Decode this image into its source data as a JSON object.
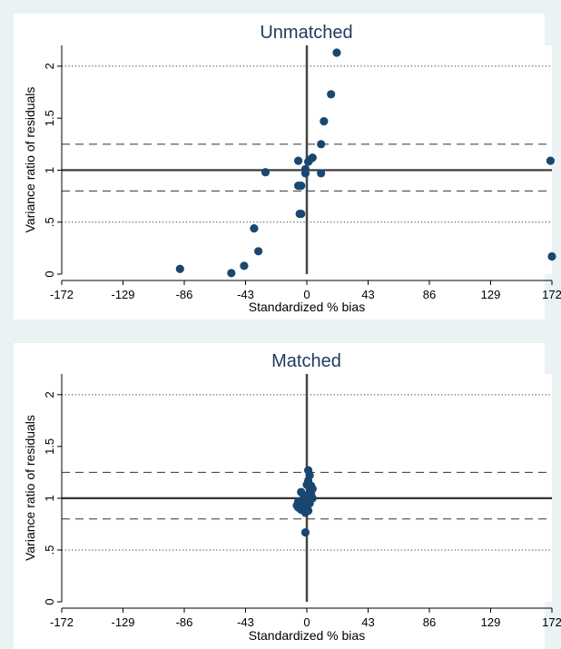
{
  "chart_data": [
    {
      "type": "scatter",
      "title": "Unmatched",
      "xlabel": "Standardized % bias",
      "ylabel": "Variance ratio of residuals",
      "xlim": [
        -172,
        172
      ],
      "ylim": [
        0,
        2.2
      ],
      "xticks": [
        -172,
        -129,
        -86,
        -43,
        0,
        43,
        86,
        129,
        172
      ],
      "xtick_labels": [
        "-172",
        "-129",
        "-86",
        "-43",
        "0",
        "43",
        "86",
        "129",
        "172"
      ],
      "yticks": [
        0,
        0.5,
        1,
        1.5,
        2
      ],
      "ytick_labels": [
        "0",
        ".5",
        "1",
        "1.5",
        "2"
      ],
      "ref_lines_y": [
        {
          "y": 2,
          "style": "dotted"
        },
        {
          "y": 1.25,
          "style": "dashed"
        },
        {
          "y": 1,
          "style": "solid"
        },
        {
          "y": 0.8,
          "style": "dashed"
        },
        {
          "y": 0.5,
          "style": "dotted"
        }
      ],
      "ref_line_x": 0,
      "marker_color": "#1a476f",
      "points": [
        {
          "x": 21,
          "y": 2.13
        },
        {
          "x": 17,
          "y": 1.73
        },
        {
          "x": 12,
          "y": 1.47
        },
        {
          "x": 10,
          "y": 1.25
        },
        {
          "x": 4,
          "y": 1.12
        },
        {
          "x": 2,
          "y": 1.1
        },
        {
          "x": 1,
          "y": 1.08
        },
        {
          "x": -6,
          "y": 1.09
        },
        {
          "x": -1,
          "y": 1.01
        },
        {
          "x": -1,
          "y": 0.97
        },
        {
          "x": 10,
          "y": 0.97
        },
        {
          "x": -29,
          "y": 0.98
        },
        {
          "x": -4,
          "y": 0.85
        },
        {
          "x": -6,
          "y": 0.85
        },
        {
          "x": -5,
          "y": 0.58
        },
        {
          "x": -4,
          "y": 0.58
        },
        {
          "x": -37,
          "y": 0.44
        },
        {
          "x": -34,
          "y": 0.22
        },
        {
          "x": -44,
          "y": 0.08
        },
        {
          "x": -53,
          "y": 0.01
        },
        {
          "x": -89,
          "y": 0.05
        },
        {
          "x": 171,
          "y": 1.09
        },
        {
          "x": 172,
          "y": 0.17
        }
      ]
    },
    {
      "type": "scatter",
      "title": "Matched",
      "xlabel": "Standardized % bias",
      "ylabel": "Variance ratio of residuals",
      "xlim": [
        -172,
        172
      ],
      "ylim": [
        0,
        2.2
      ],
      "xticks": [
        -172,
        -129,
        -86,
        -43,
        0,
        43,
        86,
        129,
        172
      ],
      "xtick_labels": [
        "-172",
        "-129",
        "-86",
        "-43",
        "0",
        "43",
        "86",
        "129",
        "172"
      ],
      "yticks": [
        0,
        0.5,
        1,
        1.5,
        2
      ],
      "ytick_labels": [
        "0",
        ".5",
        "1",
        "1.5",
        "2"
      ],
      "ref_lines_y": [
        {
          "y": 2,
          "style": "dotted"
        },
        {
          "y": 1.25,
          "style": "dashed"
        },
        {
          "y": 1,
          "style": "solid"
        },
        {
          "y": 0.8,
          "style": "dashed"
        },
        {
          "y": 0.5,
          "style": "dotted"
        }
      ],
      "ref_line_x": 0,
      "marker_color": "#1a476f",
      "points": [
        {
          "x": 1,
          "y": 1.27
        },
        {
          "x": 2,
          "y": 1.22
        },
        {
          "x": 1,
          "y": 1.17
        },
        {
          "x": 3,
          "y": 1.12
        },
        {
          "x": 0,
          "y": 1.13
        },
        {
          "x": 4,
          "y": 1.09
        },
        {
          "x": 2,
          "y": 1.06
        },
        {
          "x": -4,
          "y": 1.06
        },
        {
          "x": 3,
          "y": 1.04
        },
        {
          "x": 1,
          "y": 1.03
        },
        {
          "x": -2,
          "y": 1.02
        },
        {
          "x": 4,
          "y": 1.0
        },
        {
          "x": 1,
          "y": 0.98
        },
        {
          "x": -6,
          "y": 0.97
        },
        {
          "x": -3,
          "y": 0.96
        },
        {
          "x": 2,
          "y": 0.95
        },
        {
          "x": -7,
          "y": 0.93
        },
        {
          "x": -3,
          "y": 0.92
        },
        {
          "x": -6,
          "y": 0.91
        },
        {
          "x": 0,
          "y": 0.9
        },
        {
          "x": -4,
          "y": 0.89
        },
        {
          "x": 1,
          "y": 0.88
        },
        {
          "x": -1,
          "y": 0.86
        },
        {
          "x": -1,
          "y": 0.67
        }
      ]
    }
  ]
}
